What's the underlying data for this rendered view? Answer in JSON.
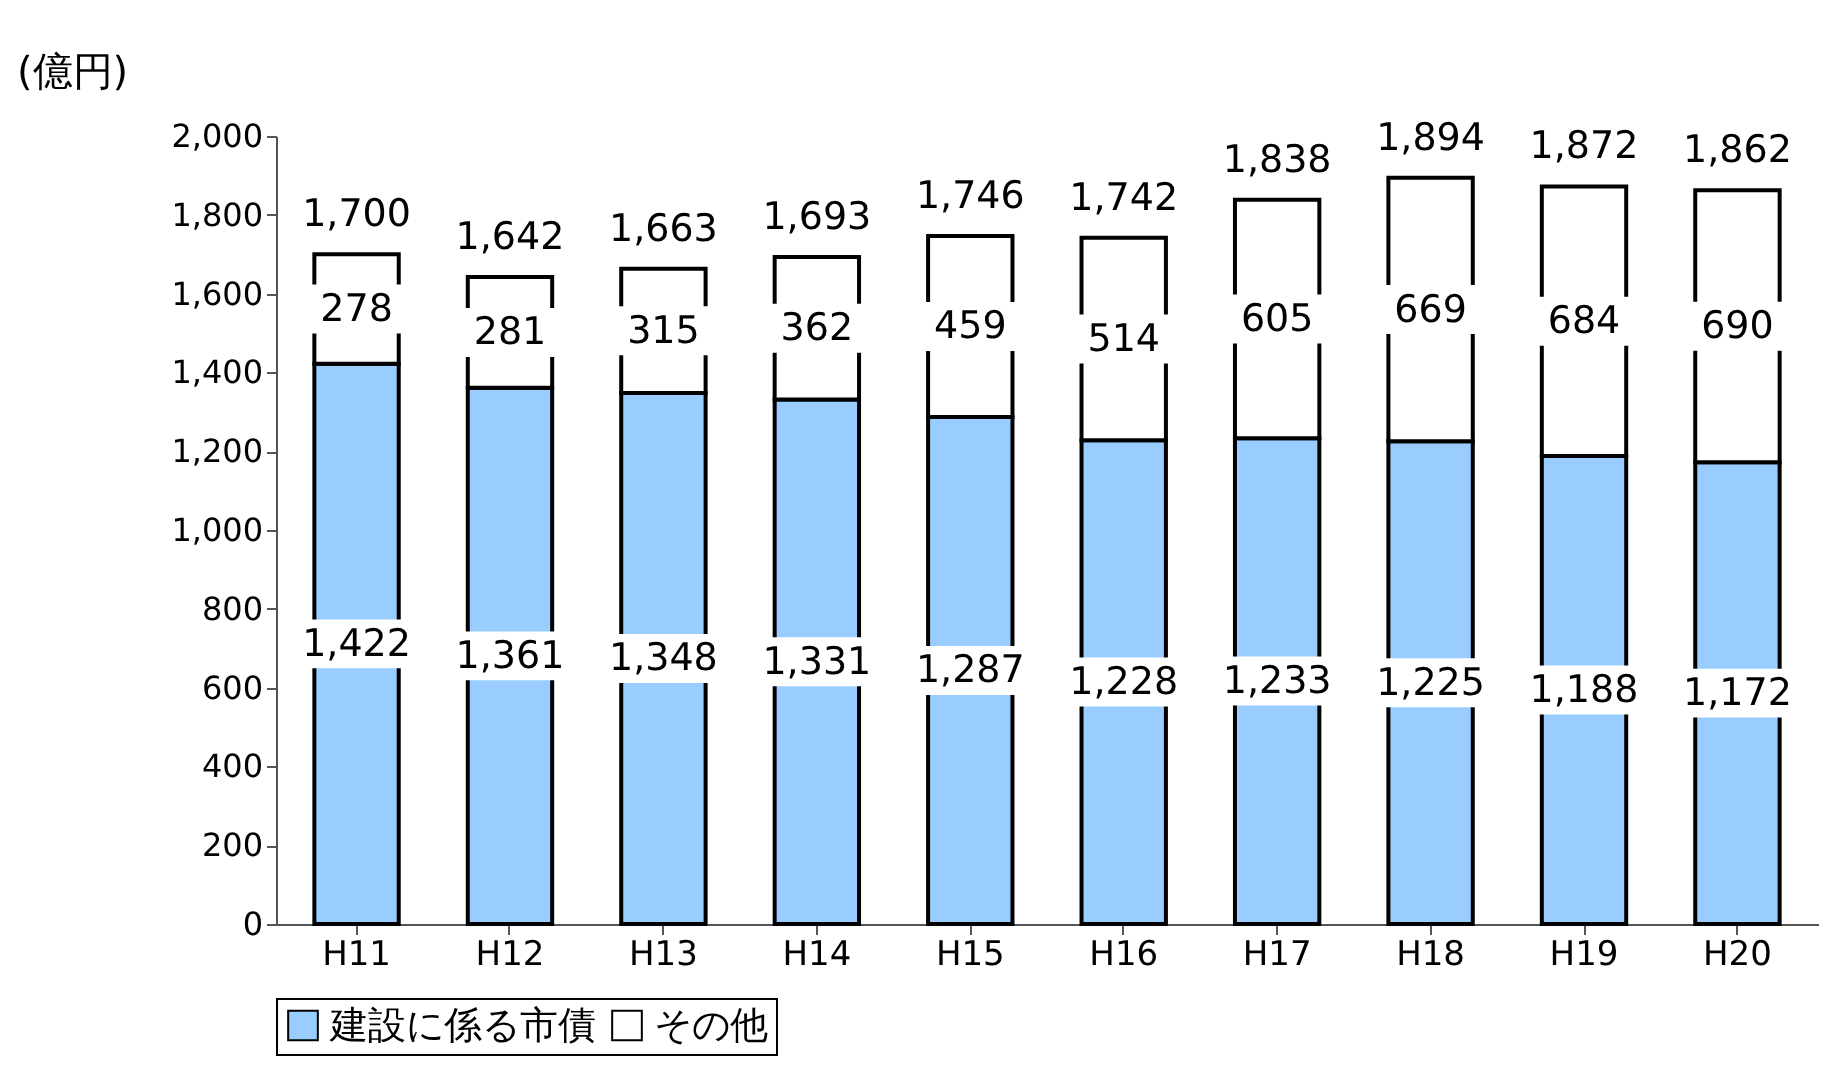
{
  "chart_data": {
    "type": "bar",
    "stacked": true,
    "ylabel": "(億円)",
    "categories": [
      "H11",
      "H12",
      "H13",
      "H14",
      "H15",
      "H16",
      "H17",
      "H18",
      "H19",
      "H20"
    ],
    "series": [
      {
        "name": "建設に係る市債",
        "color": "#99ccff",
        "values": [
          1422,
          1361,
          1348,
          1331,
          1287,
          1228,
          1233,
          1225,
          1188,
          1172
        ],
        "value_labels": [
          "1,422",
          "1,361",
          "1,348",
          "1,331",
          "1,287",
          "1,228",
          "1,233",
          "1,225",
          "1,188",
          "1,172"
        ]
      },
      {
        "name": "その他",
        "color": "#ffffff",
        "values": [
          278,
          281,
          315,
          362,
          459,
          514,
          605,
          669,
          684,
          690
        ],
        "value_labels": [
          "278",
          "281",
          "315",
          "362",
          "459",
          "514",
          "605",
          "669",
          "684",
          "690"
        ]
      }
    ],
    "totals": [
      "1,700",
      "1,642",
      "1,663",
      "1,693",
      "1,746",
      "1,742",
      "1,838",
      "1,894",
      "1,872",
      "1,862"
    ],
    "ylim": [
      0,
      2000
    ],
    "yticks": [
      0,
      200,
      400,
      600,
      800,
      {
        "value": 1000,
        "label": "1,000"
      },
      {
        "value": 1200,
        "label": "1,200"
      },
      {
        "value": 1400,
        "label": "1,400"
      },
      {
        "value": 1600,
        "label": "1,600"
      },
      {
        "value": 1800,
        "label": "1,800"
      },
      {
        "value": 2000,
        "label": "2,000"
      }
    ],
    "grid": false,
    "legend": "bottom"
  }
}
